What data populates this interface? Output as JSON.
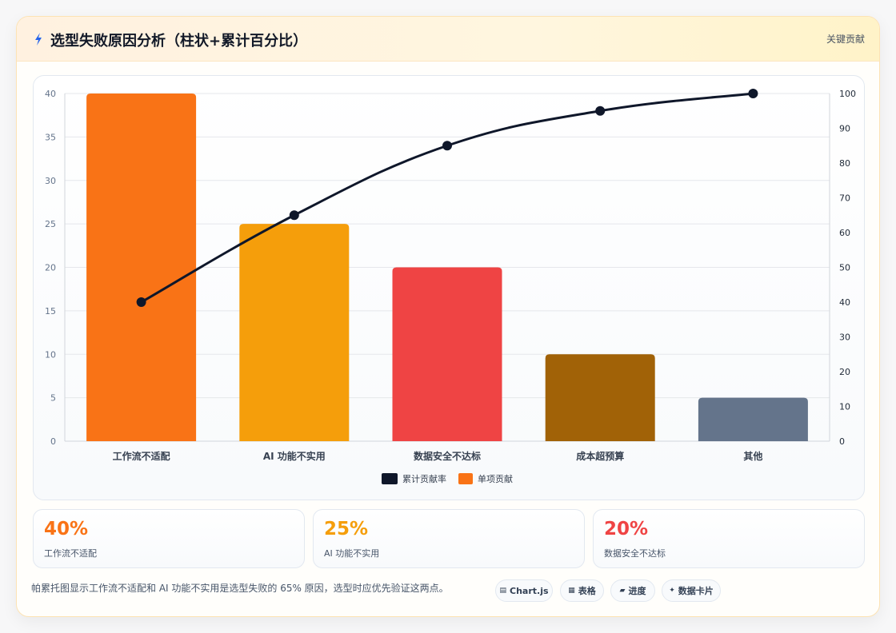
{
  "header": {
    "title": "选型失败原因分析（柱状+累计百分比）",
    "link": "关键贡献"
  },
  "chart_data": {
    "type": "bar",
    "categories": [
      "工作流不适配",
      "AI 功能不实用",
      "数据安全不达标",
      "成本超预算",
      "其他"
    ],
    "series": [
      {
        "name": "单项贡献",
        "type": "bar",
        "axis": "left",
        "values": [
          40,
          25,
          20,
          10,
          5
        ],
        "colors": [
          "#f97316",
          "#f59e0b",
          "#ef4444",
          "#a16207",
          "#64748b"
        ]
      },
      {
        "name": "累计贡献率",
        "type": "line",
        "axis": "right",
        "values": [
          40,
          65,
          85,
          95,
          100
        ],
        "color": "#0f172a"
      }
    ],
    "ylim": [
      0,
      40
    ],
    "yticks": [
      0,
      5,
      10,
      15,
      20,
      25,
      30,
      35,
      40
    ],
    "y2lim": [
      0,
      100
    ],
    "y2ticks": [
      0,
      10,
      20,
      30,
      40,
      50,
      60,
      70,
      80,
      90,
      100
    ],
    "legend_position": "bottom",
    "grid": true
  },
  "stats": [
    {
      "value": "40%",
      "label": "工作流不适配",
      "color": "#f97316"
    },
    {
      "value": "25%",
      "label": "AI 功能不实用",
      "color": "#f59e0b"
    },
    {
      "value": "20%",
      "label": "数据安全不达标",
      "color": "#ef4444"
    }
  ],
  "note": "帕累托图显示工作流不适配和 AI 功能不实用是选型失败的 65% 原因，选型时应优先验证这两点。",
  "pills": [
    {
      "icon": "▤",
      "label": "Chart.js"
    },
    {
      "icon": "▦",
      "label": "表格"
    },
    {
      "icon": "▰",
      "label": "进度"
    },
    {
      "icon": "✦",
      "label": "数据卡片"
    }
  ]
}
